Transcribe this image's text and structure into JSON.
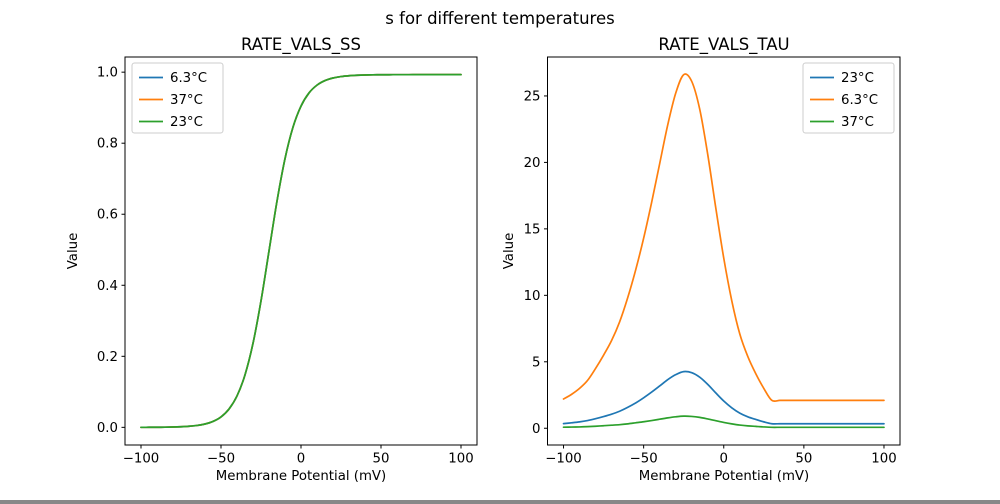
{
  "figure": {
    "suptitle": "s for different temperatures",
    "background_color": "#ffffff",
    "text_color": "#000000",
    "spine_color": "#000000"
  },
  "chart_data": [
    {
      "type": "line",
      "title": "RATE_VALS_SS",
      "xlabel": "Membrane Potential (mV)",
      "ylabel": "Value",
      "xlim": [
        -110,
        110
      ],
      "ylim": [
        -0.0497,
        1.0427
      ],
      "xticks": [
        -100,
        -50,
        0,
        50,
        100
      ],
      "xtick_labels": [
        "−100",
        "−50",
        "0",
        "50",
        "100"
      ],
      "yticks": [
        0,
        0.2,
        0.4,
        0.6,
        0.8,
        1.0
      ],
      "ytick_labels": [
        "0.0",
        "0.2",
        "0.4",
        "0.6",
        "0.8",
        "1.0"
      ],
      "grid": false,
      "legend_position": "upper-left",
      "x": [
        -100,
        -95,
        -90,
        -85,
        -80,
        -75,
        -70,
        -65,
        -60,
        -55,
        -50,
        -45,
        -40,
        -35,
        -30,
        -25,
        -20,
        -15,
        -10,
        -5,
        0,
        5,
        10,
        15,
        20,
        25,
        30,
        35,
        40,
        45,
        50,
        55,
        60,
        65,
        70,
        75,
        80,
        85,
        90,
        95,
        100
      ],
      "series": [
        {
          "name": "6.3°C",
          "color": "#1f77b4",
          "values": [
            0.0001,
            0.0002,
            0.0003,
            0.0005,
            0.0009,
            0.0017,
            0.003,
            0.0053,
            0.0094,
            0.0167,
            0.0294,
            0.0515,
            0.0884,
            0.1478,
            0.2365,
            0.3561,
            0.4965,
            0.637,
            0.7565,
            0.8452,
            0.9045,
            0.9415,
            0.9635,
            0.9763,
            0.9836,
            0.9877,
            0.99,
            0.9913,
            0.9921,
            0.9925,
            0.9927,
            0.9928,
            0.9929,
            0.9929,
            0.993,
            0.993,
            0.993,
            0.993,
            0.993,
            0.993,
            0.993
          ]
        },
        {
          "name": "37°C",
          "color": "#ff7f0e",
          "values": [
            0.0001,
            0.0002,
            0.0003,
            0.0005,
            0.0009,
            0.0017,
            0.003,
            0.0053,
            0.0094,
            0.0167,
            0.0294,
            0.0515,
            0.0884,
            0.1478,
            0.2365,
            0.3561,
            0.4965,
            0.637,
            0.7565,
            0.8452,
            0.9045,
            0.9415,
            0.9635,
            0.9763,
            0.9836,
            0.9877,
            0.99,
            0.9913,
            0.9921,
            0.9925,
            0.9927,
            0.9928,
            0.9929,
            0.9929,
            0.993,
            0.993,
            0.993,
            0.993,
            0.993,
            0.993,
            0.993
          ]
        },
        {
          "name": "23°C",
          "color": "#2ca02c",
          "values": [
            0.0001,
            0.0002,
            0.0003,
            0.0005,
            0.0009,
            0.0017,
            0.003,
            0.0053,
            0.0094,
            0.0167,
            0.0294,
            0.0515,
            0.0884,
            0.1478,
            0.2365,
            0.3561,
            0.4965,
            0.637,
            0.7565,
            0.8452,
            0.9045,
            0.9415,
            0.9635,
            0.9763,
            0.9836,
            0.9877,
            0.99,
            0.9913,
            0.9921,
            0.9925,
            0.9927,
            0.9928,
            0.9929,
            0.9929,
            0.993,
            0.993,
            0.993,
            0.993,
            0.993,
            0.993,
            0.993
          ]
        }
      ]
    },
    {
      "type": "line",
      "title": "RATE_VALS_TAU",
      "xlabel": "Membrane Potential (mV)",
      "ylabel": "Value",
      "xlim": [
        -110,
        110
      ],
      "ylim": [
        -1.26,
        27.93
      ],
      "xticks": [
        -100,
        -50,
        0,
        50,
        100
      ],
      "xtick_labels": [
        "−100",
        "−50",
        "0",
        "50",
        "100"
      ],
      "yticks": [
        0,
        5,
        10,
        15,
        20,
        25
      ],
      "ytick_labels": [
        "0",
        "5",
        "10",
        "15",
        "20",
        "25"
      ],
      "grid": false,
      "legend_position": "upper-right",
      "x": [
        -100,
        -95,
        -90,
        -85,
        -80,
        -75,
        -70,
        -65,
        -60,
        -55,
        -50,
        -45,
        -40,
        -35,
        -30,
        -25,
        -20,
        -15,
        -10,
        -5,
        0,
        5,
        10,
        15,
        20,
        25,
        30,
        35,
        40,
        45,
        50,
        55,
        60,
        65,
        70,
        75,
        80,
        85,
        90,
        95,
        100
      ],
      "series": [
        {
          "name": "23°C",
          "color": "#1f77b4",
          "values": [
            0.35,
            0.41,
            0.48,
            0.58,
            0.72,
            0.88,
            1.06,
            1.28,
            1.57,
            1.9,
            2.29,
            2.72,
            3.18,
            3.65,
            4.03,
            4.26,
            4.18,
            3.84,
            3.3,
            2.66,
            2.05,
            1.54,
            1.14,
            0.86,
            0.66,
            0.48,
            0.34,
            0.34,
            0.34,
            0.34,
            0.34,
            0.34,
            0.34,
            0.34,
            0.34,
            0.34,
            0.34,
            0.34,
            0.34,
            0.34,
            0.34
          ]
        },
        {
          "name": "6.3°C",
          "color": "#ff7f0e",
          "values": [
            2.2,
            2.55,
            3.0,
            3.6,
            4.5,
            5.5,
            6.6,
            8.0,
            9.8,
            11.9,
            14.3,
            17.0,
            19.9,
            22.8,
            25.2,
            26.6,
            26.1,
            24.0,
            20.6,
            16.6,
            12.8,
            9.6,
            7.1,
            5.4,
            4.1,
            3.0,
            2.1,
            2.1,
            2.1,
            2.1,
            2.1,
            2.1,
            2.1,
            2.1,
            2.1,
            2.1,
            2.1,
            2.1,
            2.1,
            2.1,
            2.1
          ]
        },
        {
          "name": "37°C",
          "color": "#2ca02c",
          "values": [
            0.08,
            0.09,
            0.1,
            0.12,
            0.15,
            0.19,
            0.23,
            0.27,
            0.33,
            0.41,
            0.49,
            0.58,
            0.68,
            0.78,
            0.86,
            0.91,
            0.89,
            0.82,
            0.7,
            0.57,
            0.44,
            0.33,
            0.24,
            0.18,
            0.14,
            0.1,
            0.07,
            0.07,
            0.07,
            0.07,
            0.07,
            0.07,
            0.07,
            0.07,
            0.07,
            0.07,
            0.07,
            0.07,
            0.07,
            0.07,
            0.07
          ]
        }
      ]
    }
  ]
}
